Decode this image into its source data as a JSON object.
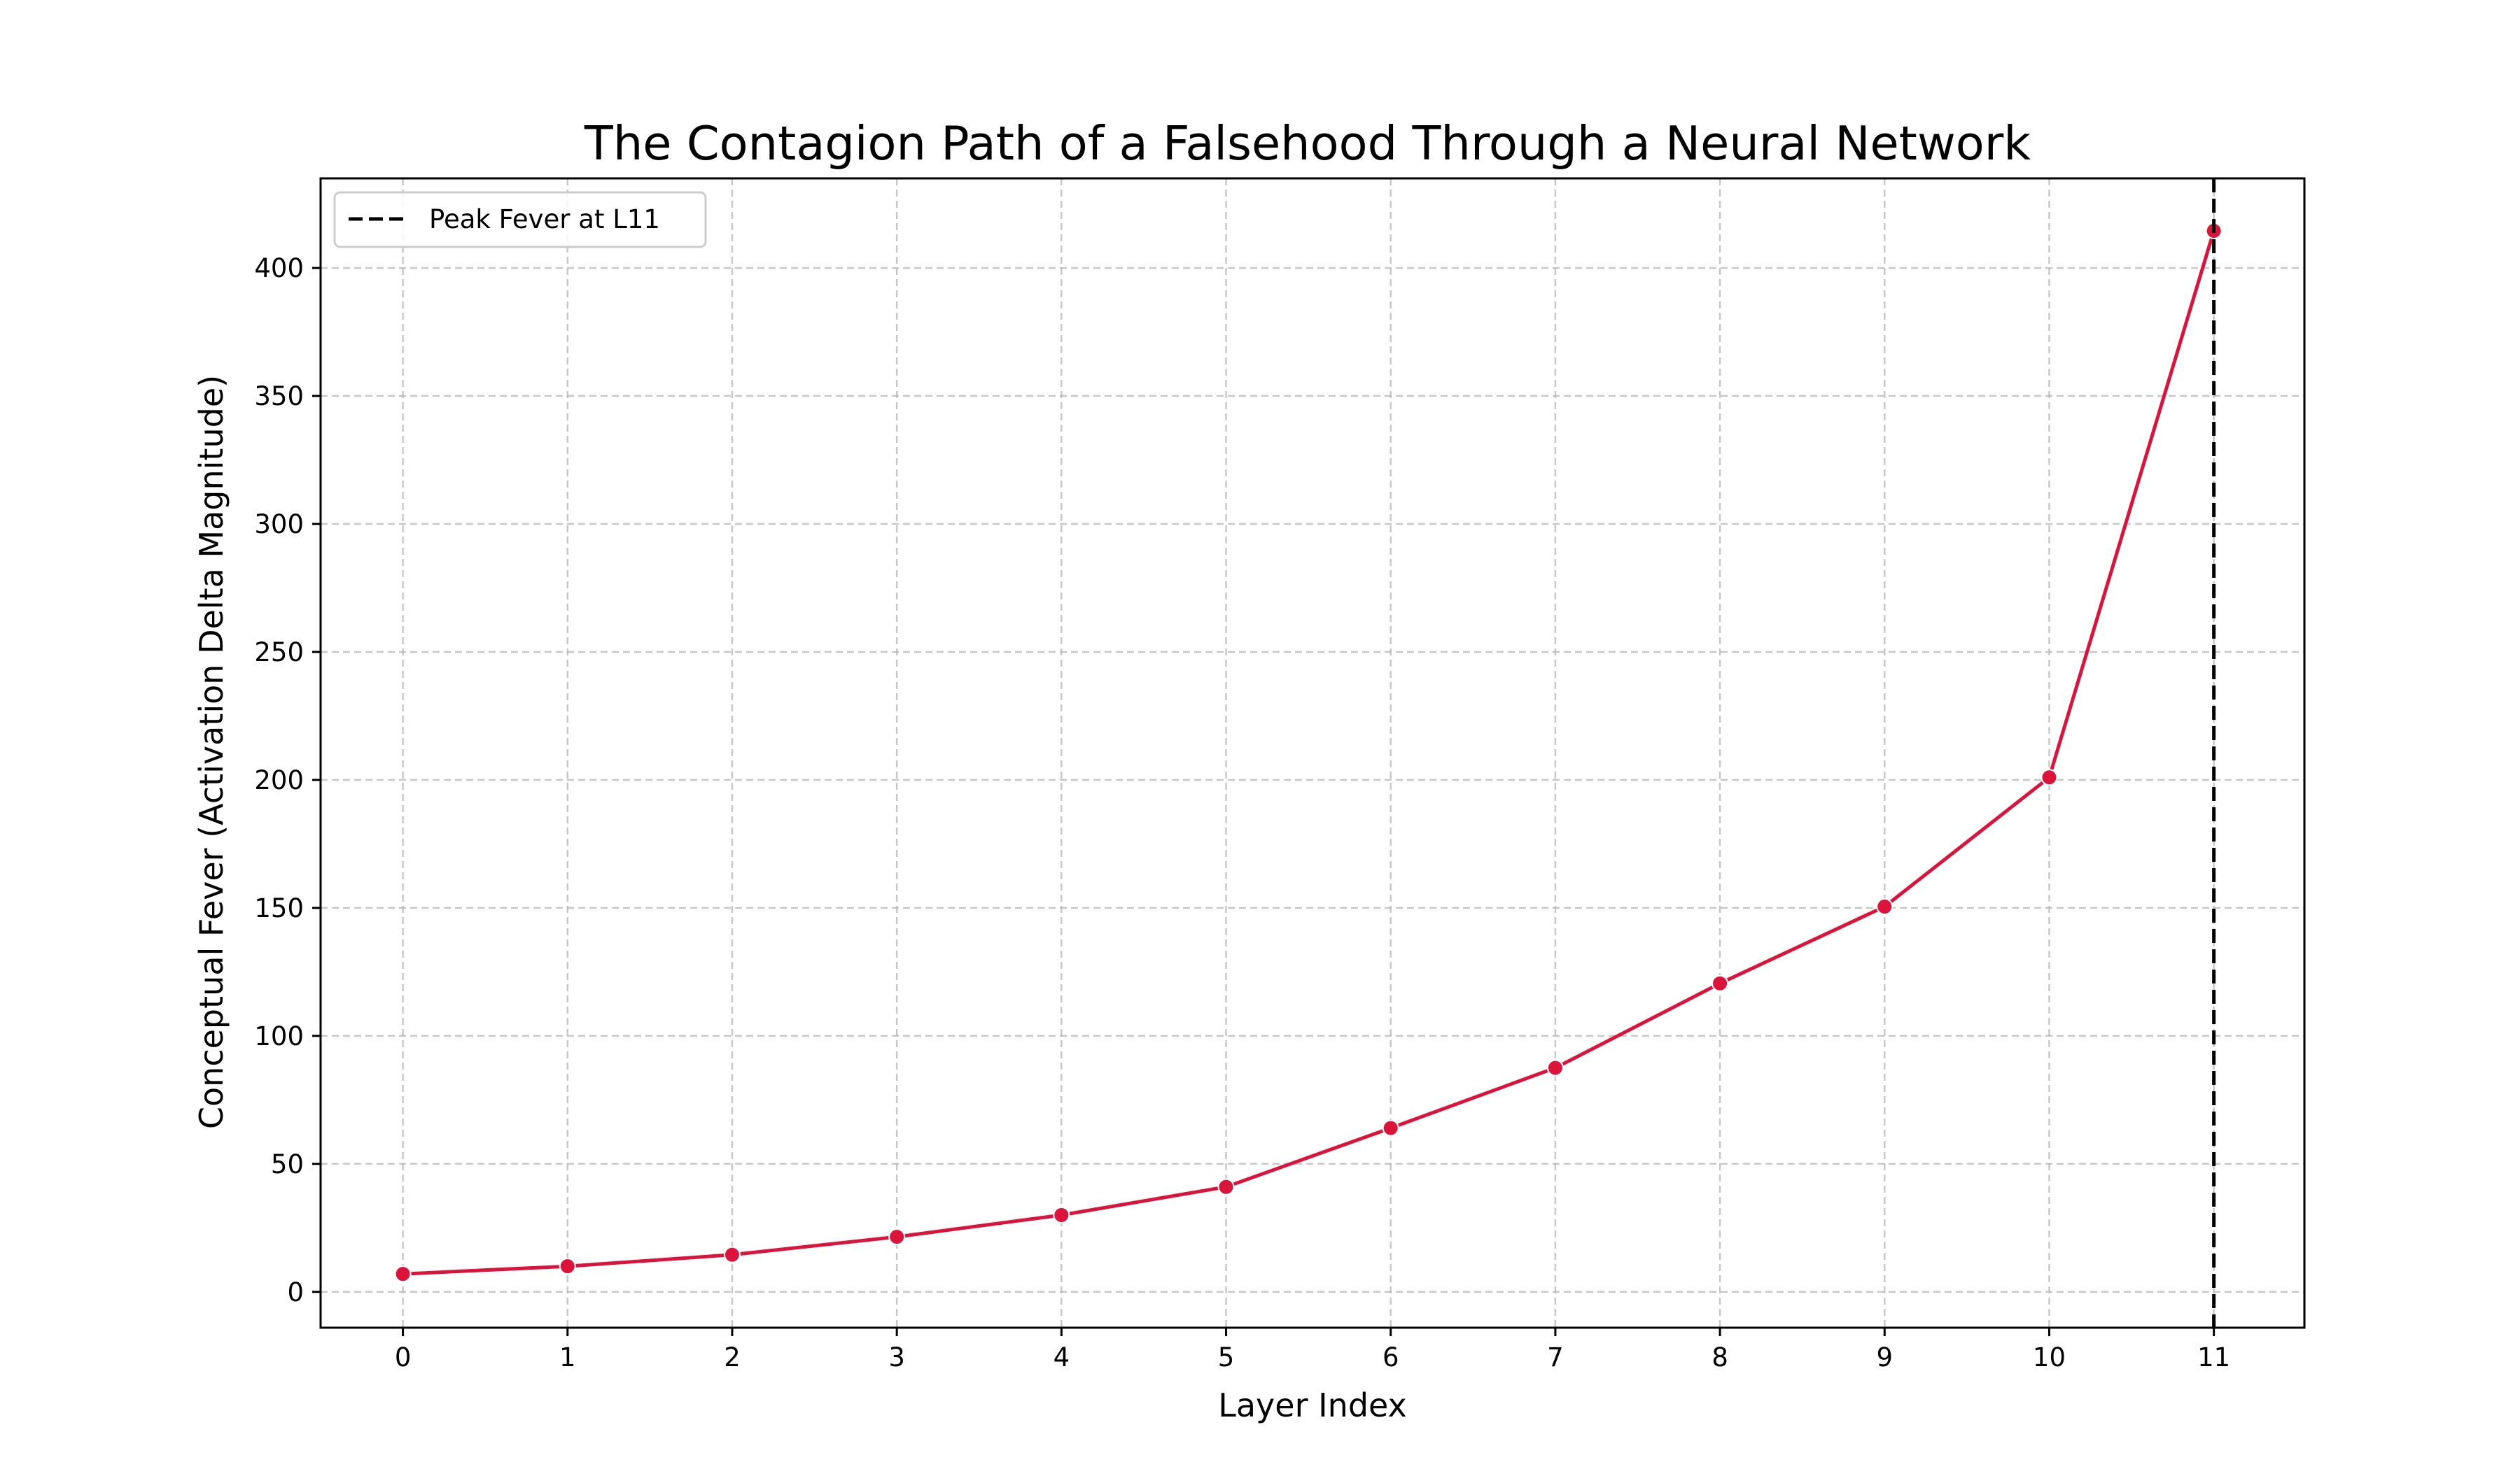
{
  "chart_data": {
    "type": "line",
    "title": "The Contagion Path of a Falsehood Through a Neural Network",
    "xlabel": "Layer Index",
    "ylabel": "Conceptual Fever (Activation Delta Magnitude)",
    "x": [
      0,
      1,
      2,
      3,
      4,
      5,
      6,
      7,
      8,
      9,
      10,
      11
    ],
    "values": [
      7,
      10,
      14.5,
      21.5,
      30,
      41,
      64,
      87.5,
      120.5,
      150.5,
      201,
      414.5
    ],
    "xlim": [
      -0.5,
      11.55
    ],
    "ylim": [
      -14,
      435
    ],
    "xticks": [
      "0",
      "1",
      "2",
      "3",
      "4",
      "5",
      "6",
      "7",
      "8",
      "9",
      "10",
      "11"
    ],
    "yticks": [
      "0",
      "50",
      "100",
      "150",
      "200",
      "250",
      "300",
      "350",
      "400"
    ],
    "line_color": "#dc143c",
    "grid": true,
    "vline": {
      "x": 11,
      "label": "Peak Fever at L11",
      "color": "#000000"
    },
    "legend_position": "top-left"
  }
}
